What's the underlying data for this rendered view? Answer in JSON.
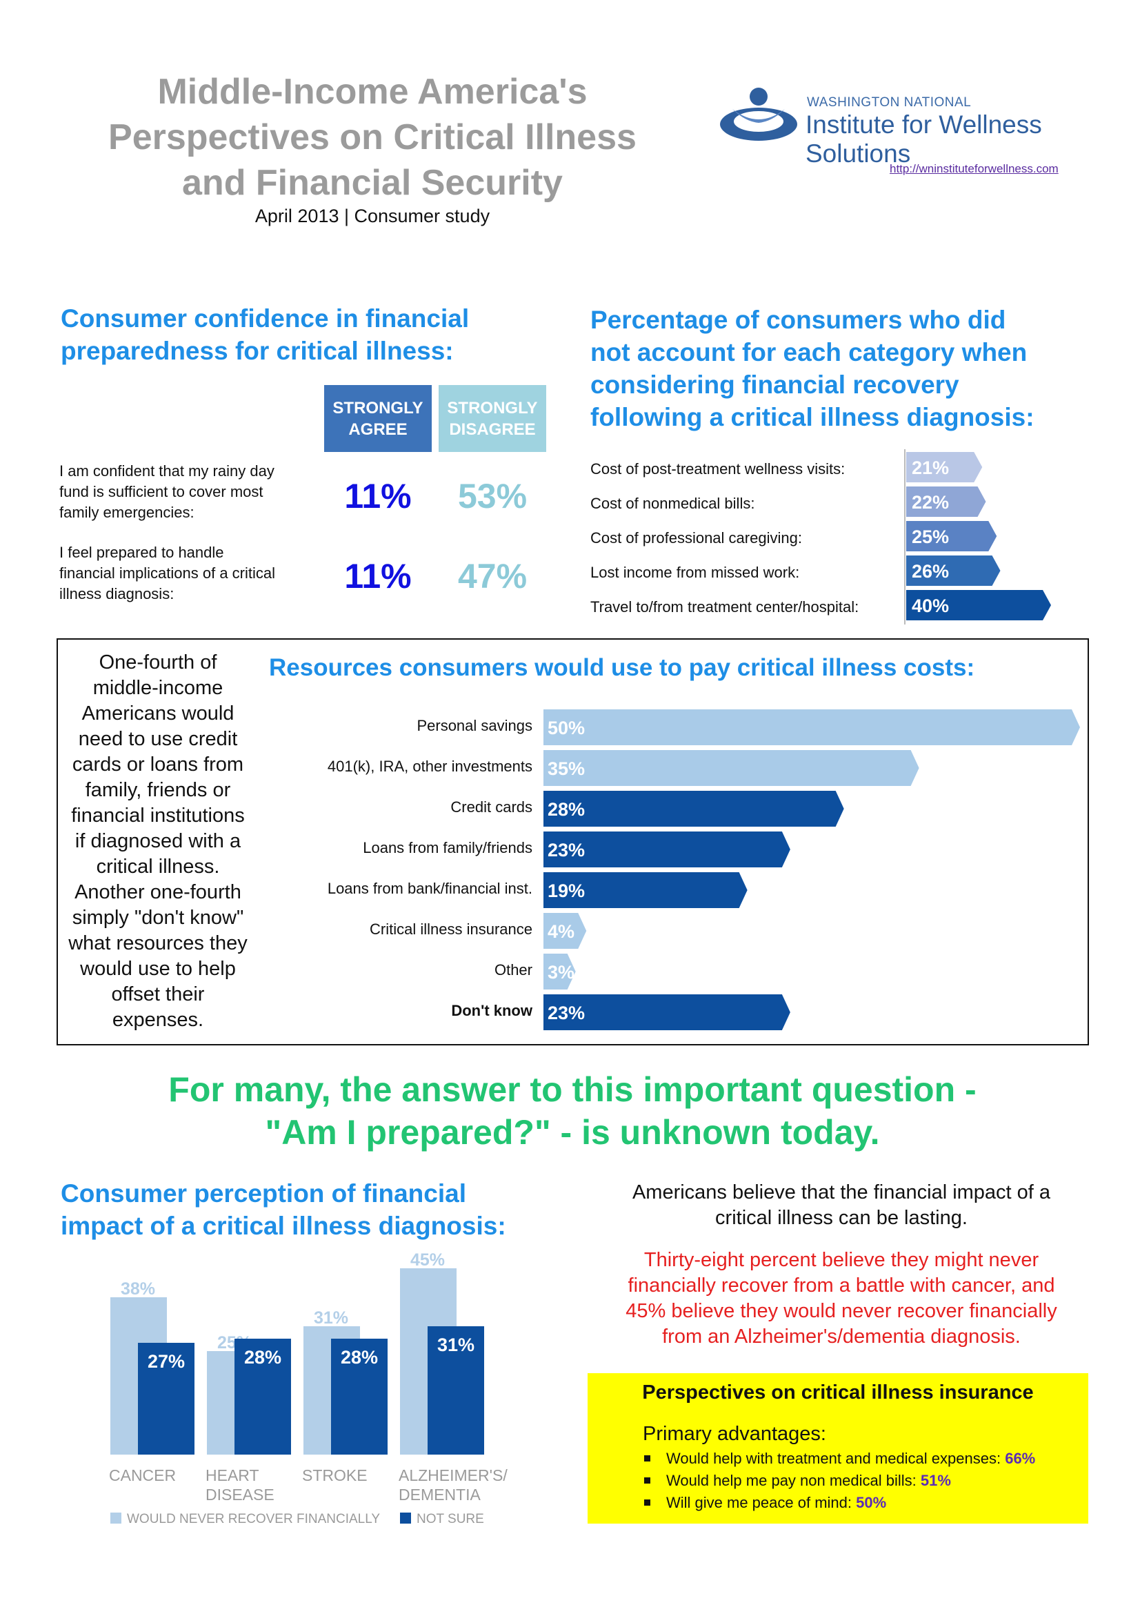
{
  "header": {
    "title_lines": [
      "Middle-Income America's",
      "Perspectives on Critical Illness",
      "and Financial Security"
    ],
    "subtitle": "April 2013 | Consumer study",
    "logo_small": "WASHINGTON NATIONAL",
    "logo_big": "Institute for Wellness Solutions",
    "url": "http://wninstituteforwellness.com"
  },
  "confidence": {
    "title_lines": [
      "Consumer confidence in financial",
      "preparedness for critical illness:"
    ],
    "col_agree": [
      "STRONGLY",
      "AGREE"
    ],
    "col_disagree": [
      "STRONGLY",
      "DISAGREE"
    ],
    "rows": [
      {
        "statement_lines": [
          "I am confident that my rainy day",
          "fund is sufficient to cover most",
          "family emergencies:"
        ],
        "agree": "11%",
        "disagree": "53%"
      },
      {
        "statement_lines": [
          "I feel prepared to handle",
          "financial implications of a critical",
          "illness diagnosis:"
        ],
        "agree": "11%",
        "disagree": "47%"
      }
    ],
    "colors": {
      "agree_header": "#3d73b9",
      "disagree_header": "#9fd3e0",
      "agree_value": "#1111e0",
      "disagree_value": "#8ccad8"
    }
  },
  "not_accounted": {
    "title_lines": [
      "Percentage of consumers who did",
      "not account for each category when",
      "considering financial recovery",
      "following a critical illness diagnosis:"
    ],
    "chart_data": {
      "type": "bar",
      "orientation": "horizontal",
      "categories": [
        "Cost of post-treatment wellness visits:",
        "Cost of nonmedical bills:",
        "Cost of professional caregiving:",
        "Lost income from missed work:",
        "Travel to/from treatment center/hospital:"
      ],
      "values": [
        21,
        22,
        25,
        26,
        40
      ],
      "labels": [
        "21%",
        "22%",
        "25%",
        "26%",
        "40%"
      ],
      "colors": [
        "#b9c7e6",
        "#8fa6d6",
        "#5a82c4",
        "#2f6bb3",
        "#0d4f9e"
      ]
    }
  },
  "resources": {
    "title": "Resources consumers would use to pay critical illness costs:",
    "side_text_lines": [
      "One-fourth of",
      "middle-income",
      "Americans would",
      "need to use credit",
      "cards or loans from",
      "family, friends or",
      "financial institutions",
      "if diagnosed with a",
      "critical illness.",
      "Another one-fourth",
      "simply \"don't know\"",
      "what resources they",
      "would use to help",
      "offset their",
      "expenses."
    ],
    "chart_data": {
      "type": "bar",
      "orientation": "horizontal",
      "categories": [
        "Personal savings",
        "401(k), IRA, other investments",
        "Credit cards",
        "Loans from family/friends",
        "Loans from bank/financial inst.",
        "Critical illness insurance",
        "Other",
        "Don't know"
      ],
      "values": [
        50,
        35,
        28,
        23,
        19,
        4,
        3,
        23
      ],
      "labels": [
        "50%",
        "35%",
        "28%",
        "23%",
        "19%",
        "4%",
        "3%",
        "23%"
      ],
      "colors": [
        "#a9cbe8",
        "#a9cbe8",
        "#0d4f9e",
        "#0d4f9e",
        "#0d4f9e",
        "#a9cbe8",
        "#a9cbe8",
        "#0d4f9e"
      ],
      "bold_category": "Don't know"
    }
  },
  "tagline_lines": [
    "For many, the answer to this important question -",
    "\"Am I prepared?\" - is unknown today."
  ],
  "perception": {
    "title_lines": [
      "Consumer perception of financial",
      "impact of a critical illness diagnosis:"
    ],
    "chart_data": {
      "type": "bar",
      "categories": [
        [
          "CANCER"
        ],
        [
          "HEART",
          "DISEASE"
        ],
        [
          "STROKE"
        ],
        [
          "ALZHEIMER'S/",
          "DEMENTIA"
        ]
      ],
      "series": [
        {
          "name": "WOULD NEVER RECOVER FINANCIALLY",
          "values": [
            38,
            25,
            31,
            45
          ],
          "labels": [
            "38%",
            "25%",
            "31%",
            "45%"
          ],
          "color": "#b3cfe8"
        },
        {
          "name": "NOT SURE",
          "values": [
            27,
            28,
            28,
            31
          ],
          "labels": [
            "27%",
            "28%",
            "28%",
            "31%"
          ],
          "color": "#0d4f9e"
        }
      ],
      "legend": "bottom"
    }
  },
  "lasting": {
    "intro_lines": [
      "Americans believe that the financial impact of a",
      "critical illness can be lasting."
    ],
    "red_lines": [
      "Thirty-eight percent believe they might never",
      "financially recover from a battle with cancer, and",
      "45% believe they would never recover financially",
      "from an Alzheimer's/dementia diagnosis."
    ]
  },
  "insurance": {
    "title": "Perspectives on critical illness insurance",
    "subtitle": "Primary advantages:",
    "items": [
      {
        "text": "Would help with treatment and medical expenses: ",
        "value": "66%"
      },
      {
        "text": "Would help me pay non medical bills: ",
        "value": "51%"
      },
      {
        "text": "Will give me peace of mind: ",
        "value": "50%"
      }
    ]
  }
}
